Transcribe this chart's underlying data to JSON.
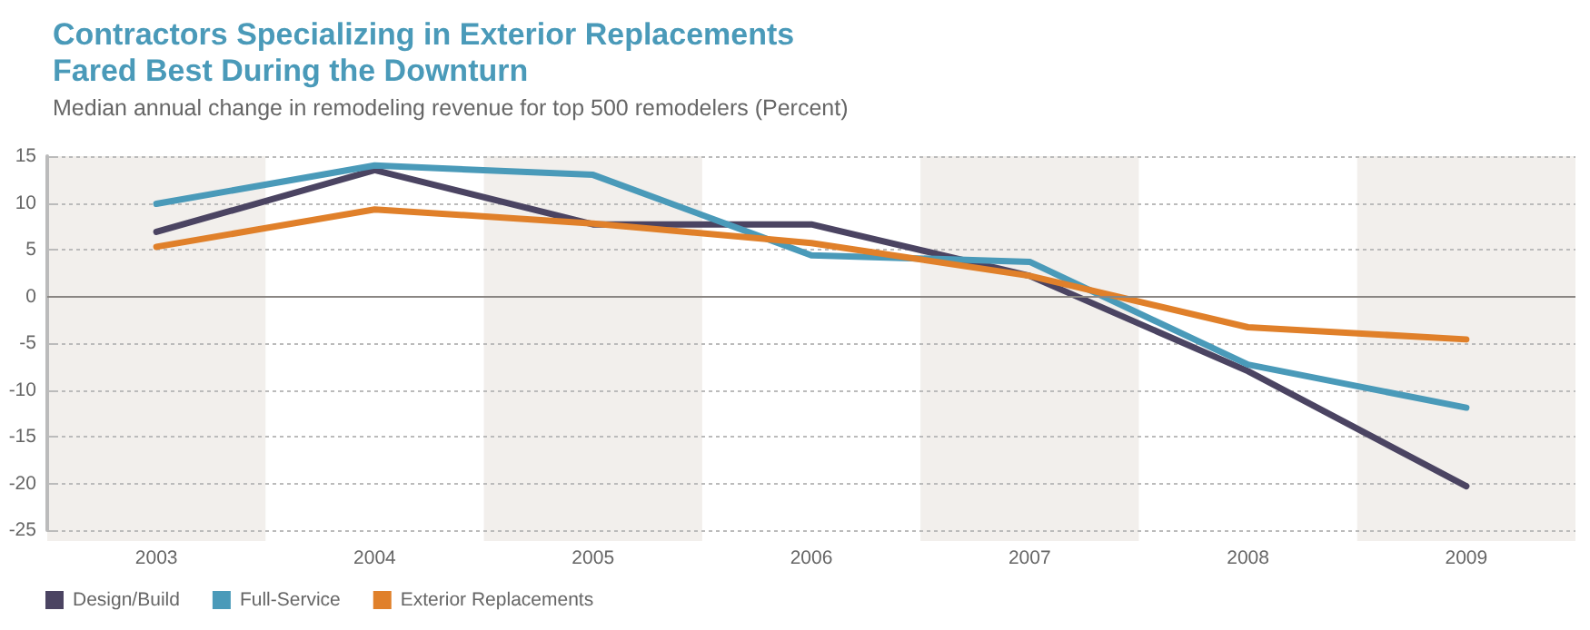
{
  "chart_data": {
    "type": "line",
    "title": "Contractors Specializing in Exterior Replacements\nFared Best During the Downturn",
    "subtitle": "Median annual change in remodeling revenue for top 500 remodelers (Percent)",
    "categories": [
      "2003",
      "2004",
      "2005",
      "2006",
      "2007",
      "2008",
      "2009"
    ],
    "series": [
      {
        "name": "Design/Build",
        "color": "#4b4462",
        "values": [
          6.9,
          13.5,
          7.7,
          7.7,
          2.2,
          -8,
          -20.3
        ]
      },
      {
        "name": "Full-Service",
        "color": "#4a9ab9",
        "values": [
          9.9,
          14,
          13,
          4.4,
          3.7,
          -7.3,
          -11.9
        ]
      },
      {
        "name": "Exterior Replacements",
        "color": "#e0802a",
        "values": [
          5.3,
          9.3,
          7.8,
          5.7,
          2.2,
          -3.3,
          -4.6
        ]
      }
    ],
    "ylim": [
      -25,
      15
    ],
    "yticks": [
      -25,
      -20,
      -15,
      -10,
      -5,
      0,
      5,
      10,
      15
    ],
    "grid": "y",
    "legend": "bottom left",
    "marker": "none",
    "line_style": "solid",
    "ref_lines": [
      {
        "axis": "y",
        "value": 0,
        "color": "#8a8683"
      }
    ],
    "bands": [
      {
        "axis": "x",
        "from": "2003",
        "to": "2003",
        "color": "#f2efec"
      },
      {
        "axis": "x",
        "from": "2005",
        "to": "2005",
        "color": "#f2efec"
      },
      {
        "axis": "x",
        "from": "2007",
        "to": "2007",
        "color": "#f2efec"
      },
      {
        "axis": "x",
        "from": "2009",
        "to": "2009",
        "color": "#f2efec"
      }
    ]
  }
}
